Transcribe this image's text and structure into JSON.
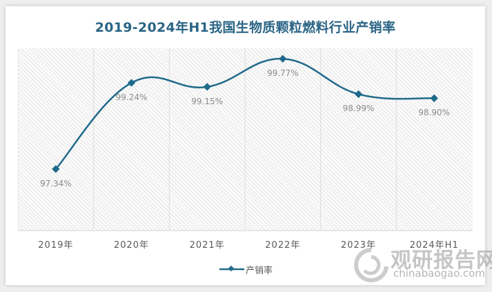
{
  "title": "2019-2024年H1我国生物质颗粒燃料行业产销率",
  "legend": {
    "label": "产销率",
    "color": "#1f6a8a"
  },
  "watermark": {
    "cn": "观研报告网",
    "en": "chinabaogao.com"
  },
  "chart_data": {
    "type": "line",
    "title": "2019-2024年H1我国生物质颗粒燃料行业产销率",
    "categories": [
      "2019年",
      "2020年",
      "2021年",
      "2022年",
      "2023年",
      "2024年H1"
    ],
    "series": [
      {
        "name": "产销率",
        "values": [
          97.34,
          99.24,
          99.15,
          99.77,
          98.99,
          98.9
        ],
        "unit": "%",
        "color": "#1f6a8a"
      }
    ],
    "data_labels": [
      "97.34%",
      "99.24%",
      "99.15%",
      "99.77%",
      "98.99%",
      "98.90%"
    ],
    "xlabel": "",
    "ylabel": "",
    "ylim": [
      96,
      100
    ],
    "y_axis_visible": false,
    "grid": "vertical",
    "smooth": true,
    "marker": "diamond",
    "legend_position": "bottom"
  }
}
